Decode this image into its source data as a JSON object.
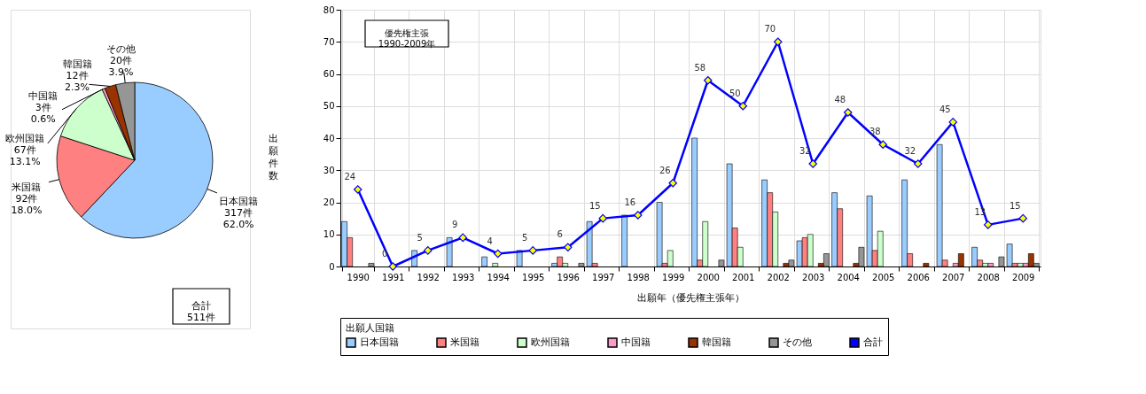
{
  "chart_data": [
    {
      "type": "pie",
      "categories": [
        "日本国籍",
        "米国籍",
        "欧州国籍",
        "中国籍",
        "韓国籍",
        "その他"
      ],
      "values": [
        317,
        92,
        67,
        3,
        12,
        20
      ],
      "colors": [
        "#99ccff",
        "#ff8080",
        "#ccffcc",
        "#ff99cc",
        "#993300",
        "#969696"
      ],
      "value_labels": [
        "317件\n62.0%",
        "92件\n18.0%",
        "67件\n13.1%",
        "3件\n0.6%",
        "12件\n2.3%",
        "20件\n3.9%"
      ],
      "annotations": [
        "合計\n511件"
      ]
    },
    {
      "type": "bar",
      "categories": [
        "1990",
        "1991",
        "1992",
        "1993",
        "1994",
        "1995",
        "1996",
        "1997",
        "1998",
        "1999",
        "2000",
        "2001",
        "2002",
        "2003",
        "2004",
        "2005",
        "2006",
        "2007",
        "2008",
        "2009"
      ],
      "series": [
        {
          "name": "日本国籍",
          "color": "#99ccff",
          "values": [
            14,
            0,
            5,
            9,
            3,
            5,
            1,
            14,
            16,
            20,
            40,
            32,
            27,
            8,
            23,
            22,
            27,
            38,
            6,
            7
          ]
        },
        {
          "name": "米国籍",
          "color": "#ff8080",
          "values": [
            9,
            0,
            0,
            0,
            0,
            0,
            3,
            1,
            0,
            1,
            2,
            12,
            23,
            9,
            18,
            5,
            4,
            2,
            2,
            1
          ]
        },
        {
          "name": "欧州国籍",
          "color": "#ccffcc",
          "values": [
            0,
            0,
            0,
            0,
            1,
            0,
            1,
            0,
            0,
            5,
            14,
            6,
            17,
            10,
            0,
            11,
            0,
            0,
            1,
            1
          ]
        },
        {
          "name": "中国籍",
          "color": "#ff99cc",
          "values": [
            0,
            0,
            0,
            0,
            0,
            0,
            0,
            0,
            0,
            0,
            0,
            0,
            0,
            0,
            0,
            0,
            0,
            1,
            1,
            1
          ]
        },
        {
          "name": "韓国籍",
          "color": "#993300",
          "values": [
            0,
            0,
            0,
            0,
            0,
            0,
            0,
            0,
            0,
            0,
            0,
            0,
            1,
            1,
            1,
            0,
            1,
            4,
            0,
            4
          ]
        },
        {
          "name": "その他",
          "color": "#969696",
          "values": [
            1,
            0,
            0,
            0,
            0,
            0,
            1,
            0,
            0,
            0,
            2,
            0,
            2,
            4,
            6,
            0,
            0,
            0,
            3,
            1
          ]
        },
        {
          "name": "合計",
          "type": "line",
          "color": "#0000ff",
          "values": [
            24,
            0,
            5,
            9,
            4,
            5,
            6,
            15,
            16,
            26,
            58,
            50,
            70,
            32,
            48,
            38,
            32,
            45,
            13,
            15
          ],
          "value_labels": [
            "24",
            "0",
            "5",
            "9",
            "4",
            "5",
            "6",
            "15",
            "16",
            "26",
            "58",
            "50",
            "70",
            "32",
            "48",
            "38",
            "32",
            "45",
            "13",
            "15"
          ]
        }
      ],
      "ylim": [
        0,
        80
      ],
      "yticks": [
        0,
        10,
        20,
        30,
        40,
        50,
        60,
        70,
        80
      ],
      "ylabel": "出願件数",
      "xlabel": "出願年（優先権主張年）",
      "legend_title": "出願人国籍",
      "legend": "bottom",
      "grid": true,
      "marker": "diamond",
      "line_style": "solid",
      "annotations": [
        "優先権主張\n1990-2009年"
      ]
    }
  ]
}
